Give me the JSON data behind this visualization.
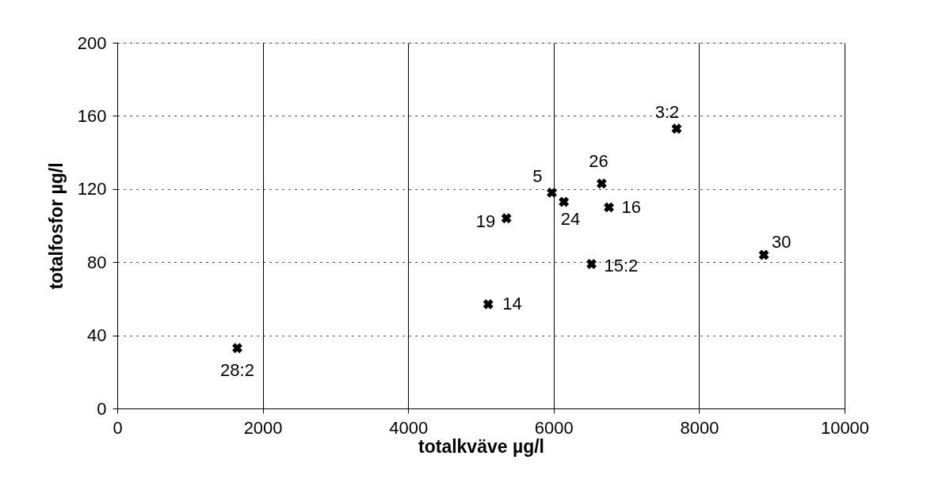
{
  "chart_data": {
    "type": "scatter",
    "xlabel": "totalkväve  µg/l",
    "ylabel": "totalfosfor  µg/l",
    "x": [
      1650,
      5100,
      5350,
      5975,
      6140,
      6660,
      6760,
      6520,
      7690,
      8890
    ],
    "series": [
      {
        "color": "#000000",
        "values": [
          33,
          57,
          104,
          118,
          113,
          123,
          110,
          79,
          153,
          84
        ]
      }
    ],
    "xlim": [
      0,
      10000
    ],
    "xticks": [
      0,
      2000,
      4000,
      6000,
      8000,
      10000
    ],
    "ylim": [
      0,
      200
    ],
    "yticks": [
      0,
      40,
      80,
      120,
      160,
      200
    ],
    "grid": true,
    "marker": "cross",
    "annotations": [
      {
        "text": "28:2",
        "x": 1650,
        "y": 33
      },
      {
        "text": "14",
        "x": 5100,
        "y": 57
      },
      {
        "text": "19",
        "x": 5350,
        "y": 104
      },
      {
        "text": "5",
        "x": 5975,
        "y": 118
      },
      {
        "text": "24",
        "x": 6140,
        "y": 113
      },
      {
        "text": "26",
        "x": 6660,
        "y": 123
      },
      {
        "text": "16",
        "x": 6760,
        "y": 110
      },
      {
        "text": "15:2",
        "x": 6520,
        "y": 79
      },
      {
        "text": "3:2",
        "x": 7690,
        "y": 153
      },
      {
        "text": "30",
        "x": 8890,
        "y": 84
      }
    ]
  }
}
